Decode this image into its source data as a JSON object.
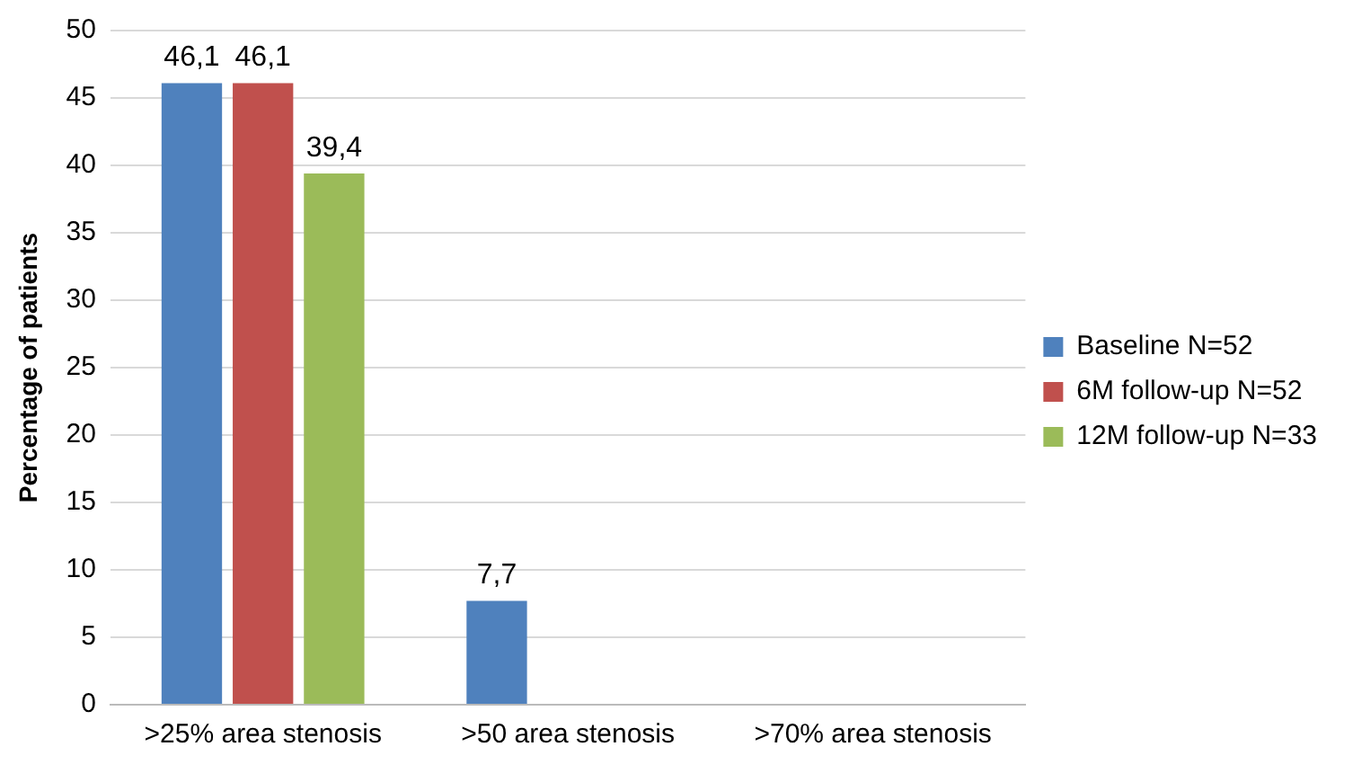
{
  "chart_data": {
    "type": "bar",
    "ylabel": "Percentage of patients",
    "categories": [
      ">25% area stenosis",
      ">50 area stenosis",
      ">70% area stenosis"
    ],
    "series": [
      {
        "name": "Baseline N=52",
        "color": "#4f81bd",
        "values": [
          46.1,
          7.7,
          null
        ],
        "value_labels": [
          "46,1",
          "7,7",
          null
        ]
      },
      {
        "name": "6M follow-up N=52",
        "color": "#c0504d",
        "values": [
          46.1,
          null,
          null
        ],
        "value_labels": [
          "46,1",
          null,
          null
        ]
      },
      {
        "name": "12M follow-up N=33",
        "color": "#9bbb59",
        "values": [
          39.4,
          null,
          null
        ],
        "value_labels": [
          "39,4",
          null,
          null
        ]
      }
    ],
    "ylim": [
      0,
      50
    ],
    "yticks": [
      0,
      5,
      10,
      15,
      20,
      25,
      30,
      35,
      40,
      45,
      50
    ],
    "grid": "y",
    "legend": "right"
  }
}
